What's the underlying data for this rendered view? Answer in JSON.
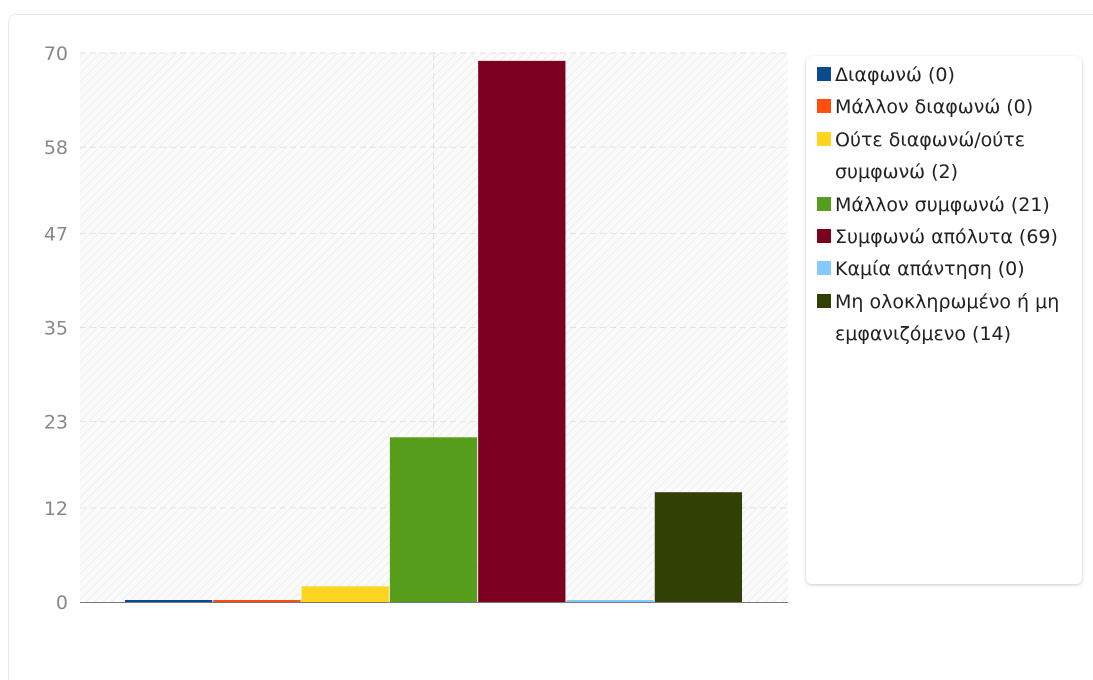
{
  "chart_data": {
    "type": "bar",
    "title": "",
    "xlabel": "",
    "ylabel": "",
    "ylim": [
      0,
      70
    ],
    "yticks": [
      "0",
      "12",
      "23",
      "35",
      "47",
      "58",
      "70"
    ],
    "grid": true,
    "legend_position": "right",
    "categories": [
      "Διαφωνώ (0)",
      "Μάλλον διαφωνώ (0)",
      "Ούτε διαφωνώ/ούτε συμφωνώ (2)",
      "Μάλλον συμφωνώ (21)",
      "Συμφωνώ απόλυτα (69)",
      "Καμία απάντηση (0)",
      "Μη ολοκληρωμένο ή μη εμφανιζόμενο (14)"
    ],
    "values": [
      0,
      0,
      2,
      21,
      69,
      0,
      14
    ],
    "colors": [
      "#0b4a8c",
      "#ff4e0f",
      "#ffd51e",
      "#579d1c",
      "#7e0021",
      "#83caff",
      "#314004"
    ]
  },
  "legend": {
    "items": [
      {
        "label": "Διαφωνώ (0)",
        "color": "#0b4a8c"
      },
      {
        "label": "Μάλλον διαφωνώ (0)",
        "color": "#ff4e0f"
      },
      {
        "label": "Ούτε διαφωνώ/ούτε συμφωνώ (2)",
        "color": "#ffd51e"
      },
      {
        "label": "Μάλλον συμφωνώ (21)",
        "color": "#579d1c"
      },
      {
        "label": "Συμφωνώ απόλυτα (69)",
        "color": "#7e0021"
      },
      {
        "label": "Καμία απάντηση (0)",
        "color": "#83caff"
      },
      {
        "label": "Μη ολοκληρωμένο ή μη εμφανιζόμενο (14)",
        "color": "#314004"
      }
    ]
  }
}
